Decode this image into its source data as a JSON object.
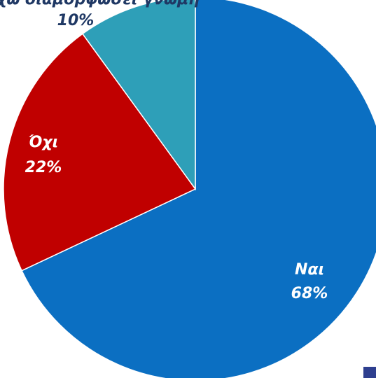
{
  "chart_data": {
    "type": "pie",
    "title": "",
    "slices": [
      {
        "label": "Ναι",
        "percent_text": "68%",
        "value": 68,
        "color": "#0B6FC2"
      },
      {
        "label": "Όχι",
        "percent_text": "22%",
        "value": 22,
        "color": "#C00000"
      },
      {
        "label": "Δεν έχω διαμορφώσει γνώμη",
        "percent_text": "10%",
        "value": 10,
        "color": "#2E9FB8"
      }
    ],
    "label_color": "#1F3864",
    "label_color_light": "#FFFFFF",
    "legend_square_color": "#2E3F8F"
  }
}
